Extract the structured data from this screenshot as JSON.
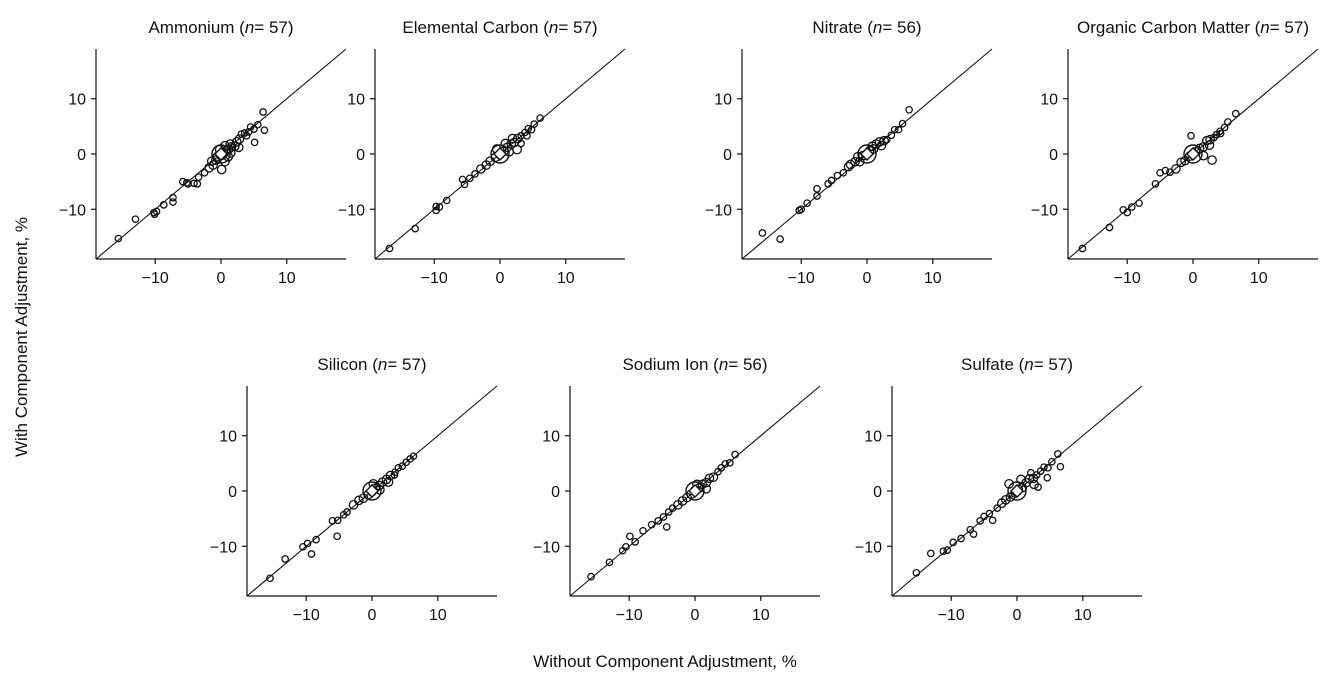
{
  "figure": {
    "ylabel": "With Component Adjustment, %",
    "xlabel": "Without Component Adjustment, %"
  },
  "chart_data": [
    {
      "type": "scatter",
      "title_name": "Ammonium",
      "title_n": "n",
      "title_rest": "= 57)",
      "xlim": [
        -19,
        19
      ],
      "ylim": [
        -19,
        19
      ],
      "xticks": [
        -10,
        0,
        10
      ],
      "yticks": [
        -10,
        0,
        10
      ],
      "reference_line": "y = x",
      "points": [
        [
          -15.6,
          -15.3
        ],
        [
          -13,
          -11.8
        ],
        [
          -10.1,
          -10.9
        ],
        [
          -9.8,
          -10.4
        ],
        [
          -10.2,
          -10.6
        ],
        [
          -8.7,
          -9.2
        ],
        [
          -7.3,
          -8.7
        ],
        [
          -7.3,
          -7.9
        ],
        [
          -5.8,
          -5
        ],
        [
          -5.2,
          -5.2
        ],
        [
          -5,
          -5.4
        ],
        [
          -4.1,
          -5.3
        ],
        [
          -3.6,
          -5.4
        ],
        [
          -3.4,
          -4.2
        ],
        [
          -2.5,
          -3.4
        ],
        [
          -1.8,
          -2.5
        ],
        [
          -1.2,
          -2
        ],
        [
          -0.8,
          -1.1
        ],
        [
          -0.6,
          -0.5
        ],
        [
          0,
          -0.3
        ],
        [
          0.4,
          0.2
        ],
        [
          0.8,
          0.6
        ],
        [
          1.2,
          0.9
        ],
        [
          1.6,
          1.3
        ],
        [
          0.1,
          -2.8
        ],
        [
          0.6,
          -1.4
        ],
        [
          1.1,
          -0.5
        ],
        [
          1.5,
          0.2
        ],
        [
          2.1,
          1.4
        ],
        [
          2.4,
          2.2
        ],
        [
          2.8,
          2.7
        ],
        [
          3.1,
          3.6
        ],
        [
          3.6,
          3.8
        ],
        [
          3.9,
          3.3
        ],
        [
          4.2,
          4
        ],
        [
          4.5,
          4.9
        ],
        [
          5,
          4.5
        ],
        [
          5.6,
          5.3
        ],
        [
          6.4,
          7.6
        ],
        [
          6.6,
          4.3
        ],
        [
          5.1,
          2.1
        ],
        [
          -1.4,
          -1.3
        ],
        [
          -0.2,
          0.8
        ],
        [
          0.6,
          1.5
        ],
        [
          1.4,
          1.8
        ],
        [
          2.7,
          1.2
        ]
      ]
    },
    {
      "type": "scatter",
      "title_name": "Elemental Carbon",
      "title_n": "n",
      "title_rest": "= 57)",
      "xlim": [
        -19,
        19
      ],
      "ylim": [
        -19,
        19
      ],
      "xticks": [
        -10,
        0,
        10
      ],
      "yticks": [
        -10,
        0,
        10
      ],
      "reference_line": "y = x",
      "points": [
        [
          -16.8,
          -17.1
        ],
        [
          -12.9,
          -13.5
        ],
        [
          -9.7,
          -10.2
        ],
        [
          -9.7,
          -9.5
        ],
        [
          -9.2,
          -9.6
        ],
        [
          -8.1,
          -8.4
        ],
        [
          -5.7,
          -4.6
        ],
        [
          -5.4,
          -5.5
        ],
        [
          -4.6,
          -4.4
        ],
        [
          -3.8,
          -3.6
        ],
        [
          -2.9,
          -2.7
        ],
        [
          -2.1,
          -2
        ],
        [
          -1.5,
          -1.3
        ],
        [
          -0.7,
          -0.6
        ],
        [
          0,
          -0.1
        ],
        [
          0.6,
          0.5
        ],
        [
          1.1,
          1.2
        ],
        [
          1.7,
          1.8
        ],
        [
          2.2,
          2.1
        ],
        [
          2.7,
          2.8
        ],
        [
          3.2,
          3.3
        ],
        [
          3.8,
          3.9
        ],
        [
          4.3,
          4.6
        ],
        [
          4.8,
          4.4
        ],
        [
          5.2,
          5.4
        ],
        [
          6.1,
          6.5
        ],
        [
          2.6,
          0.8
        ],
        [
          3.2,
          1.9
        ],
        [
          1.4,
          0.4
        ],
        [
          -0.5,
          0.9
        ],
        [
          0.8,
          1.9
        ],
        [
          1.9,
          2.8
        ],
        [
          4.1,
          3.3
        ]
      ]
    },
    {
      "type": "scatter",
      "title_name": "Nitrate",
      "title_n": "n",
      "title_rest": "= 56)",
      "xlim": [
        -19,
        19
      ],
      "ylim": [
        -19,
        19
      ],
      "xticks": [
        -10,
        0,
        10
      ],
      "yticks": [
        -10,
        0,
        10
      ],
      "reference_line": "y = x",
      "points": [
        [
          -15.9,
          -14.3
        ],
        [
          -13.2,
          -15.4
        ],
        [
          -10.3,
          -10.2
        ],
        [
          -10,
          -10
        ],
        [
          -9.1,
          -8.9
        ],
        [
          -7.6,
          -7.6
        ],
        [
          -7.6,
          -6.3
        ],
        [
          -5.9,
          -5.4
        ],
        [
          -5.4,
          -4.8
        ],
        [
          -4.5,
          -3.9
        ],
        [
          -3.6,
          -3.4
        ],
        [
          -2.8,
          -2.3
        ],
        [
          -1.8,
          -1.4
        ],
        [
          -1.1,
          -1.4
        ],
        [
          -0.6,
          -0.3
        ],
        [
          0,
          0
        ],
        [
          0.4,
          0.6
        ],
        [
          1,
          0.9
        ],
        [
          1.4,
          1.8
        ],
        [
          1.9,
          2.2
        ],
        [
          2.6,
          2.4
        ],
        [
          3,
          2.6
        ],
        [
          3.7,
          3.4
        ],
        [
          4.2,
          4.4
        ],
        [
          4.8,
          4.4
        ],
        [
          5.4,
          5.5
        ],
        [
          6.4,
          8
        ],
        [
          -2.5,
          -1.9
        ],
        [
          -1.4,
          -0.5
        ],
        [
          0.8,
          1.4
        ],
        [
          2.2,
          1.5
        ]
      ]
    },
    {
      "type": "scatter",
      "title_name": "Organic Carbon Matter",
      "title_n": "n",
      "title_rest": "= 57)",
      "xlim": [
        -19,
        19
      ],
      "ylim": [
        -19,
        19
      ],
      "xticks": [
        -10,
        0,
        10
      ],
      "yticks": [
        -10,
        0,
        10
      ],
      "reference_line": "y = x",
      "points": [
        [
          -16.8,
          -17.1
        ],
        [
          -12.7,
          -13.3
        ],
        [
          -10.6,
          -10.1
        ],
        [
          -10,
          -10.6
        ],
        [
          -9.3,
          -9.6
        ],
        [
          -8.2,
          -8.9
        ],
        [
          -5.7,
          -5.4
        ],
        [
          -5,
          -3.4
        ],
        [
          -4.2,
          -3
        ],
        [
          -3.5,
          -3.3
        ],
        [
          -2.6,
          -2.7
        ],
        [
          -1.8,
          -1.5
        ],
        [
          -1.2,
          -1.2
        ],
        [
          -0.5,
          -0.4
        ],
        [
          0,
          0.1
        ],
        [
          0.4,
          0.4
        ],
        [
          1,
          1
        ],
        [
          1.6,
          1.3
        ],
        [
          2.1,
          2.4
        ],
        [
          2.6,
          2.6
        ],
        [
          3.2,
          3
        ],
        [
          3.6,
          3.5
        ],
        [
          4.2,
          3.7
        ],
        [
          4.8,
          4.8
        ],
        [
          5.3,
          5.8
        ],
        [
          6.5,
          7.3
        ],
        [
          -0.3,
          3.3
        ],
        [
          2.9,
          -1.1
        ],
        [
          1.6,
          -0.3
        ],
        [
          2.5,
          1.6
        ],
        [
          4.1,
          4.1
        ]
      ]
    },
    {
      "type": "scatter",
      "title_name": "Silicon",
      "title_n": "n",
      "title_rest": "= 57)",
      "xlim": [
        -19,
        19
      ],
      "ylim": [
        -19,
        19
      ],
      "xticks": [
        -10,
        0,
        10
      ],
      "yticks": [
        -10,
        0,
        10
      ],
      "reference_line": "y = x",
      "points": [
        [
          -15.5,
          -15.8
        ],
        [
          -13.2,
          -12.3
        ],
        [
          -10.5,
          -10.1
        ],
        [
          -9.8,
          -9.5
        ],
        [
          -9.2,
          -11.4
        ],
        [
          -8.5,
          -8.8
        ],
        [
          -5.3,
          -8.2
        ],
        [
          -6,
          -5.4
        ],
        [
          -5.2,
          -5.3
        ],
        [
          -4.3,
          -4.3
        ],
        [
          -3.8,
          -3.8
        ],
        [
          -2.8,
          -2.5
        ],
        [
          -2,
          -1.7
        ],
        [
          -1.3,
          -1.3
        ],
        [
          -0.6,
          -0.7
        ],
        [
          0,
          -0.1
        ],
        [
          0.5,
          0.5
        ],
        [
          1.1,
          1
        ],
        [
          1.6,
          1.6
        ],
        [
          2.2,
          2.1
        ],
        [
          2.8,
          2.8
        ],
        [
          3.5,
          3.4
        ],
        [
          4,
          4.2
        ],
        [
          4.6,
          4.5
        ],
        [
          5.2,
          5.2
        ],
        [
          5.8,
          5.8
        ],
        [
          6.3,
          6.3
        ],
        [
          1.2,
          0.2
        ],
        [
          2.5,
          1.6
        ],
        [
          0.2,
          1.3
        ],
        [
          3.4,
          2.9
        ]
      ]
    },
    {
      "type": "scatter",
      "title_name": "Sodium Ion",
      "title_n": "n",
      "title_rest": "= 56)",
      "xlim": [
        -19,
        19
      ],
      "ylim": [
        -19,
        19
      ],
      "xticks": [
        -10,
        0,
        10
      ],
      "yticks": [
        -10,
        0,
        10
      ],
      "reference_line": "y = x",
      "points": [
        [
          -15.8,
          -15.5
        ],
        [
          -13,
          -12.9
        ],
        [
          -11,
          -10.8
        ],
        [
          -10.5,
          -10.1
        ],
        [
          -9.9,
          -8.2
        ],
        [
          -9.1,
          -9.2
        ],
        [
          -7.9,
          -7.2
        ],
        [
          -6.6,
          -6.1
        ],
        [
          -5.6,
          -5.4
        ],
        [
          -4.8,
          -4.7
        ],
        [
          -4,
          -3.8
        ],
        [
          -3.4,
          -3.1
        ],
        [
          -2.6,
          -2.5
        ],
        [
          -1.9,
          -1.8
        ],
        [
          -1.2,
          -1.2
        ],
        [
          -0.6,
          -0.6
        ],
        [
          0,
          0.1
        ],
        [
          0.6,
          0.5
        ],
        [
          1.1,
          1.2
        ],
        [
          1.7,
          1.5
        ],
        [
          2.2,
          2.3
        ],
        [
          2.8,
          2.5
        ],
        [
          3.5,
          3.5
        ],
        [
          4,
          4.2
        ],
        [
          4.6,
          4.9
        ],
        [
          5.3,
          5.1
        ],
        [
          6.1,
          6.6
        ],
        [
          -4.3,
          -6.5
        ],
        [
          1.7,
          0.4
        ],
        [
          0.3,
          1.2
        ]
      ]
    },
    {
      "type": "scatter",
      "title_name": "Sulfate",
      "title_n": "n",
      "title_rest": "= 57)",
      "xlim": [
        -19,
        19
      ],
      "ylim": [
        -19,
        19
      ],
      "xticks": [
        -10,
        0,
        10
      ],
      "yticks": [
        -10,
        0,
        10
      ],
      "reference_line": "y = x",
      "points": [
        [
          -15.3,
          -14.8
        ],
        [
          -13.1,
          -11.3
        ],
        [
          -11.2,
          -10.9
        ],
        [
          -10.6,
          -10.7
        ],
        [
          -9.7,
          -9.3
        ],
        [
          -8.5,
          -8.6
        ],
        [
          -7.1,
          -7
        ],
        [
          -6.6,
          -7.8
        ],
        [
          -5.6,
          -5.4
        ],
        [
          -5,
          -4.6
        ],
        [
          -4.2,
          -4.1
        ],
        [
          -3.7,
          -5.3
        ],
        [
          -3,
          -3.1
        ],
        [
          -2.3,
          -2.2
        ],
        [
          -1.7,
          -1.6
        ],
        [
          -1,
          -1.1
        ],
        [
          -0.3,
          -0.4
        ],
        [
          0.2,
          0.3
        ],
        [
          0.8,
          0.6
        ],
        [
          1.4,
          1.5
        ],
        [
          1.9,
          2.2
        ],
        [
          2.5,
          2.3
        ],
        [
          3,
          2.9
        ],
        [
          3.6,
          3.6
        ],
        [
          4.1,
          4.3
        ],
        [
          4.7,
          4.2
        ],
        [
          5.3,
          5.3
        ],
        [
          6.2,
          6.7
        ],
        [
          6.6,
          4.4
        ],
        [
          2.6,
          1.2
        ],
        [
          3.2,
          0.7
        ],
        [
          -1.2,
          1.3
        ],
        [
          0.6,
          2.1
        ],
        [
          4.6,
          2.4
        ],
        [
          2.1,
          3.3
        ]
      ]
    }
  ]
}
